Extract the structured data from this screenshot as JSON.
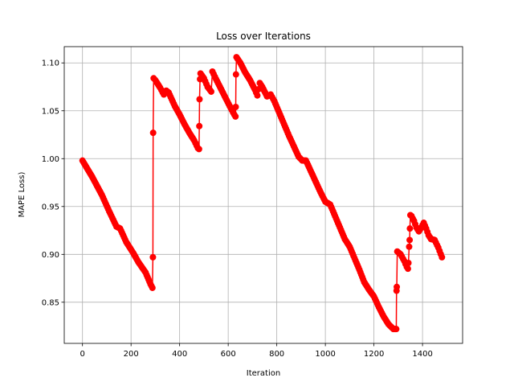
{
  "chart_data": {
    "type": "line",
    "title": "Loss over Iterations",
    "xlabel": "Iteration",
    "ylabel": "MAPE Loss)",
    "xlim": [
      -75,
      1565
    ],
    "ylim": [
      0.807,
      1.117
    ],
    "x_ticks": [
      0,
      200,
      400,
      600,
      800,
      1000,
      1200,
      1400
    ],
    "y_ticks": [
      0.85,
      0.9,
      0.95,
      1.0,
      1.05,
      1.1
    ],
    "y_tick_labels": [
      "0.85",
      "0.90",
      "0.95",
      "1.00",
      "1.05",
      "1.10"
    ],
    "grid": true,
    "marker": "circle",
    "color": "#ff0000",
    "series": [
      {
        "name": "",
        "points": [
          [
            0,
            0.998
          ],
          [
            40,
            0.981
          ],
          [
            80,
            0.962
          ],
          [
            110,
            0.945
          ],
          [
            140,
            0.929
          ],
          [
            155,
            0.927
          ],
          [
            180,
            0.913
          ],
          [
            210,
            0.901
          ],
          [
            230,
            0.892
          ],
          [
            260,
            0.881
          ],
          [
            280,
            0.869
          ],
          [
            288,
            0.865
          ],
          [
            290,
            0.897
          ],
          [
            291,
            1.027
          ],
          [
            293,
            1.084
          ],
          [
            300,
            1.082
          ],
          [
            320,
            1.074
          ],
          [
            335,
            1.067
          ],
          [
            345,
            1.071
          ],
          [
            355,
            1.069
          ],
          [
            380,
            1.055
          ],
          [
            400,
            1.046
          ],
          [
            420,
            1.036
          ],
          [
            440,
            1.027
          ],
          [
            460,
            1.019
          ],
          [
            475,
            1.011
          ],
          [
            480,
            1.01
          ],
          [
            481,
            1.034
          ],
          [
            482,
            1.062
          ],
          [
            484,
            1.083
          ],
          [
            486,
            1.089
          ],
          [
            500,
            1.084
          ],
          [
            515,
            1.075
          ],
          [
            530,
            1.07
          ],
          [
            535,
            1.091
          ],
          [
            550,
            1.083
          ],
          [
            570,
            1.073
          ],
          [
            590,
            1.063
          ],
          [
            610,
            1.053
          ],
          [
            625,
            1.046
          ],
          [
            630,
            1.044
          ],
          [
            631,
            1.054
          ],
          [
            632,
            1.088
          ],
          [
            634,
            1.106
          ],
          [
            650,
            1.1
          ],
          [
            670,
            1.09
          ],
          [
            690,
            1.082
          ],
          [
            710,
            1.072
          ],
          [
            720,
            1.066
          ],
          [
            730,
            1.079
          ],
          [
            740,
            1.075
          ],
          [
            760,
            1.065
          ],
          [
            775,
            1.067
          ],
          [
            790,
            1.06
          ],
          [
            810,
            1.048
          ],
          [
            830,
            1.036
          ],
          [
            850,
            1.024
          ],
          [
            870,
            1.013
          ],
          [
            890,
            1.002
          ],
          [
            905,
            0.998
          ],
          [
            920,
            0.998
          ],
          [
            940,
            0.987
          ],
          [
            960,
            0.976
          ],
          [
            980,
            0.965
          ],
          [
            1000,
            0.955
          ],
          [
            1020,
            0.952
          ],
          [
            1040,
            0.94
          ],
          [
            1060,
            0.928
          ],
          [
            1080,
            0.916
          ],
          [
            1100,
            0.908
          ],
          [
            1120,
            0.896
          ],
          [
            1140,
            0.884
          ],
          [
            1160,
            0.871
          ],
          [
            1180,
            0.863
          ],
          [
            1200,
            0.856
          ],
          [
            1220,
            0.845
          ],
          [
            1240,
            0.835
          ],
          [
            1260,
            0.827
          ],
          [
            1280,
            0.822
          ],
          [
            1292,
            0.822
          ],
          [
            1293,
            0.862
          ],
          [
            1294,
            0.866
          ],
          [
            1296,
            0.903
          ],
          [
            1310,
            0.9
          ],
          [
            1325,
            0.893
          ],
          [
            1335,
            0.887
          ],
          [
            1340,
            0.885
          ],
          [
            1342,
            0.891
          ],
          [
            1345,
            0.908
          ],
          [
            1347,
            0.915
          ],
          [
            1348,
            0.927
          ],
          [
            1350,
            0.941
          ],
          [
            1355,
            0.94
          ],
          [
            1365,
            0.935
          ],
          [
            1375,
            0.928
          ],
          [
            1385,
            0.924
          ],
          [
            1395,
            0.928
          ],
          [
            1405,
            0.933
          ],
          [
            1415,
            0.927
          ],
          [
            1425,
            0.92
          ],
          [
            1435,
            0.916
          ],
          [
            1450,
            0.915
          ],
          [
            1465,
            0.907
          ],
          [
            1480,
            0.897
          ]
        ]
      }
    ]
  }
}
